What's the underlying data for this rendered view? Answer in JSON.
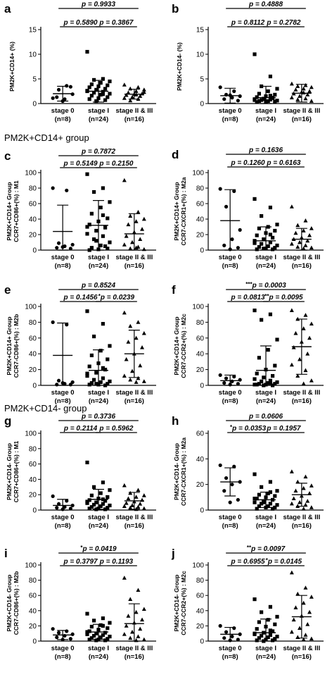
{
  "section_labels": [
    "PM2K+CD14+ group",
    "PM2K+CD14- group"
  ],
  "chart_data": [
    {
      "panel": "a",
      "type": "scatter",
      "ylabel": "PM2K+CD14+ (%)",
      "ylim": [
        0,
        15
      ],
      "yticks": [
        0,
        5,
        10,
        15
      ],
      "categories": [
        "stage 0",
        "stage I",
        "stage II & III"
      ],
      "ns": [
        "(n=8)",
        "(n=24)",
        "(n=16)"
      ],
      "groups": [
        {
          "values": [
            1.1,
            3.6,
            2.8,
            1.9,
            0.9,
            1.3,
            3.4,
            0.5
          ],
          "mean": 2.0,
          "sd": 1.5
        },
        {
          "values": [
            10.5,
            5.0,
            4.8,
            4.5,
            4.2,
            3.9,
            3.7,
            3.5,
            3.3,
            3.0,
            2.8,
            2.6,
            2.4,
            2.2,
            2.0,
            1.8,
            1.6,
            1.3,
            1.1,
            0.9,
            0.7,
            0.5,
            2.5,
            1.9
          ],
          "mean": 2.5,
          "sd": 2.2
        },
        {
          "values": [
            3.8,
            3.3,
            3.0,
            2.8,
            2.5,
            2.2,
            2.0,
            1.9,
            1.7,
            1.5,
            1.3,
            1.1,
            0.9,
            0.6,
            2.3,
            1.8
          ],
          "mean": 1.9,
          "sd": 1.0
        }
      ],
      "comparisons": [
        {
          "pair": [
            0,
            2
          ],
          "text": "p = 0.9933",
          "stars": ""
        },
        {
          "pair": [
            0,
            1
          ],
          "text": "p = 0.5890",
          "stars": ""
        },
        {
          "pair": [
            1,
            2
          ],
          "text": "p = 0.3867",
          "stars": ""
        }
      ]
    },
    {
      "panel": "b",
      "type": "scatter",
      "ylabel": "PM2K+CD14- (%)",
      "ylim": [
        0,
        15
      ],
      "yticks": [
        0,
        5,
        10,
        15
      ],
      "categories": [
        "stage 0",
        "stage I",
        "stage II & III"
      ],
      "ns": [
        "(n=8)",
        "(n=24)",
        "(n=16)"
      ],
      "groups": [
        {
          "values": [
            3.3,
            2.5,
            1.8,
            1.5,
            1.2,
            0.9,
            0.6,
            1.7
          ],
          "mean": 1.6,
          "sd": 1.5
        },
        {
          "values": [
            10.0,
            5.5,
            3.5,
            3.0,
            2.5,
            2.0,
            1.8,
            1.5,
            1.3,
            1.1,
            1.0,
            0.9,
            0.8,
            0.7,
            0.6,
            0.5,
            0.5,
            0.4,
            0.4,
            0.3,
            1.2,
            0.9,
            0.7,
            1.6
          ],
          "mean": 1.2,
          "sd": 2.3
        },
        {
          "values": [
            4.0,
            3.7,
            3.5,
            3.3,
            3.0,
            2.8,
            2.5,
            2.3,
            2.0,
            1.8,
            1.5,
            1.2,
            1.0,
            0.8,
            0.5,
            2.2
          ],
          "mean": 2.1,
          "sd": 1.8
        }
      ],
      "comparisons": [
        {
          "pair": [
            0,
            2
          ],
          "text": "p = 0.4888",
          "stars": ""
        },
        {
          "pair": [
            0,
            1
          ],
          "text": "p = 0.8112",
          "stars": ""
        },
        {
          "pair": [
            1,
            2
          ],
          "text": "p = 0.2782",
          "stars": ""
        }
      ]
    },
    {
      "panel": "c",
      "type": "scatter",
      "ylabel": "PM2K+CD14+ Group|CCR7+CD86+(%) : M1",
      "ylim": [
        0,
        100
      ],
      "yticks": [
        0,
        20,
        40,
        60,
        80,
        100
      ],
      "categories": [
        "stage 0",
        "stage I",
        "stage II & III"
      ],
      "ns": [
        "(n=8)",
        "(n=24)",
        "(n=16)"
      ],
      "groups": [
        {
          "values": [
            80,
            77,
            9,
            7,
            5,
            3,
            2,
            4
          ],
          "mean": 24,
          "sd": 34
        },
        {
          "values": [
            98,
            80,
            75,
            62,
            55,
            47,
            41,
            37,
            33,
            29,
            25,
            21,
            18,
            14,
            10,
            6,
            3,
            2,
            1,
            0,
            5,
            12,
            30,
            45
          ],
          "mean": 32,
          "sd": 32
        },
        {
          "values": [
            90,
            49,
            44,
            40,
            37,
            33,
            27,
            23,
            18,
            14,
            10,
            7,
            4,
            2,
            1,
            3
          ],
          "mean": 21,
          "sd": 26
        }
      ],
      "comparisons": [
        {
          "pair": [
            0,
            2
          ],
          "text": "p = 0.7872",
          "stars": ""
        },
        {
          "pair": [
            0,
            1
          ],
          "text": "p = 0.5149",
          "stars": ""
        },
        {
          "pair": [
            1,
            2
          ],
          "text": "p = 0.2150",
          "stars": ""
        }
      ]
    },
    {
      "panel": "d",
      "type": "scatter",
      "ylabel": "PM2K+CD14+ Group|CCR7-CXCR1+(%) : M2a",
      "ylim": [
        0,
        100
      ],
      "yticks": [
        0,
        20,
        40,
        60,
        80,
        100
      ],
      "categories": [
        "stage 0",
        "stage I",
        "stage II & III"
      ],
      "ns": [
        "(n=8)",
        "(n=24)",
        "(n=16)"
      ],
      "groups": [
        {
          "values": [
            79,
            76,
            56,
            26,
            14,
            6,
            3,
            1
          ],
          "mean": 38,
          "sd": 40
        },
        {
          "values": [
            66,
            55,
            44,
            33,
            30,
            28,
            25,
            22,
            19,
            16,
            14,
            12,
            10,
            8,
            6,
            5,
            4,
            3,
            2,
            1,
            1,
            2,
            9,
            20
          ],
          "mean": 12,
          "sd": 18
        },
        {
          "values": [
            56,
            38,
            32,
            28,
            25,
            22,
            19,
            16,
            14,
            12,
            10,
            8,
            6,
            4,
            3,
            2
          ],
          "mean": 14,
          "sd": 14
        }
      ],
      "comparisons": [
        {
          "pair": [
            0,
            2
          ],
          "text": "p = 0.1636",
          "stars": ""
        },
        {
          "pair": [
            0,
            1
          ],
          "text": "p = 0.1260",
          "stars": ""
        },
        {
          "pair": [
            1,
            2
          ],
          "text": "p = 0.6163",
          "stars": ""
        }
      ]
    },
    {
      "panel": "e",
      "type": "scatter",
      "ylabel": "PM2K+CD14+ Group|CCR7-CD86+(%) : M2b",
      "ylim": [
        0,
        100
      ],
      "yticks": [
        0,
        20,
        40,
        60,
        80,
        100
      ],
      "categories": [
        "stage 0",
        "stage I",
        "stage II & III"
      ],
      "ns": [
        "(n=8)",
        "(n=24)",
        "(n=16)"
      ],
      "groups": [
        {
          "values": [
            80,
            77,
            6,
            4,
            2,
            1,
            1,
            3
          ],
          "mean": 38,
          "sd": 41
        },
        {
          "values": [
            94,
            78,
            62,
            50,
            44,
            38,
            33,
            28,
            24,
            20,
            16,
            12,
            9,
            7,
            5,
            4,
            3,
            2,
            1,
            1,
            0,
            2,
            15,
            22
          ],
          "mean": 19,
          "sd": 26
        },
        {
          "values": [
            92,
            80,
            75,
            66,
            60,
            55,
            48,
            40,
            33,
            25,
            18,
            12,
            9,
            7,
            5,
            4
          ],
          "mean": 40,
          "sd": 30
        }
      ],
      "comparisons": [
        {
          "pair": [
            0,
            2
          ],
          "text": "p = 0.8524",
          "stars": ""
        },
        {
          "pair": [
            0,
            1
          ],
          "text": "p = 0.1456",
          "stars": ""
        },
        {
          "pair": [
            1,
            2
          ],
          "text": "p = 0.0239",
          "stars": "*"
        }
      ]
    },
    {
      "panel": "f",
      "type": "scatter",
      "ylabel": "PM2K+CD14+ Group|CCR7-CCR2+(%) : M2c",
      "ylim": [
        0,
        100
      ],
      "yticks": [
        0,
        20,
        40,
        60,
        80,
        100
      ],
      "categories": [
        "stage 0",
        "stage I",
        "stage II & III"
      ],
      "ns": [
        "(n=8)",
        "(n=24)",
        "(n=16)"
      ],
      "groups": [
        {
          "values": [
            13,
            11,
            9,
            7,
            5,
            3,
            2,
            1
          ],
          "mean": 6,
          "sd": 7
        },
        {
          "values": [
            95,
            90,
            83,
            58,
            45,
            35,
            25,
            20,
            15,
            12,
            10,
            8,
            6,
            5,
            4,
            3,
            2,
            2,
            1,
            1,
            0,
            0,
            1,
            3
          ],
          "mean": 19,
          "sd": 31
        },
        {
          "values": [
            95,
            89,
            84,
            78,
            72,
            66,
            60,
            55,
            48,
            40,
            33,
            26,
            19,
            12,
            6,
            2
          ],
          "mean": 49,
          "sd": 35
        }
      ],
      "comparisons": [
        {
          "pair": [
            0,
            2
          ],
          "text": "p = 0.0003",
          "stars": "***"
        },
        {
          "pair": [
            0,
            1
          ],
          "text": "p = 0.0813",
          "stars": ""
        },
        {
          "pair": [
            1,
            2
          ],
          "text": "p = 0.0095",
          "stars": "**"
        }
      ]
    },
    {
      "panel": "g",
      "type": "scatter",
      "ylabel": "PM2K+CD14- Group|CCR7+CD86+(%) : M1",
      "ylim": [
        0,
        100
      ],
      "yticks": [
        0,
        20,
        40,
        60,
        80,
        100
      ],
      "categories": [
        "stage 0",
        "stage I",
        "stage II & III"
      ],
      "ns": [
        "(n=8)",
        "(n=24)",
        "(n=16)"
      ],
      "groups": [
        {
          "values": [
            18,
            12,
            8,
            6,
            4,
            3,
            2,
            1
          ],
          "mean": 6,
          "sd": 8
        },
        {
          "values": [
            62,
            36,
            30,
            26,
            22,
            19,
            17,
            15,
            13,
            12,
            10,
            9,
            8,
            7,
            6,
            5,
            4,
            3,
            2,
            2,
            1,
            1,
            11,
            14
          ],
          "mean": 14,
          "sd": 13
        },
        {
          "values": [
            32,
            26,
            22,
            19,
            17,
            15,
            13,
            11,
            9,
            8,
            6,
            5,
            4,
            3,
            2,
            1
          ],
          "mean": 12,
          "sd": 11
        }
      ],
      "comparisons": [
        {
          "pair": [
            0,
            2
          ],
          "text": "p = 0.3736",
          "stars": ""
        },
        {
          "pair": [
            0,
            1
          ],
          "text": "p = 0.2114",
          "stars": ""
        },
        {
          "pair": [
            1,
            2
          ],
          "text": "p = 0.5962",
          "stars": ""
        }
      ]
    },
    {
      "panel": "h",
      "type": "scatter",
      "ylabel": "PM2K+CD14- Group|CCR7-CXCR1+(%) : M2a",
      "ylim": [
        0,
        60
      ],
      "yticks": [
        0,
        20,
        40,
        60
      ],
      "categories": [
        "stage 0",
        "stage I",
        "stage II & III"
      ],
      "ns": [
        "(n=8)",
        "(n=24)",
        "(n=16)"
      ],
      "groups": [
        {
          "values": [
            35,
            34,
            25,
            22,
            20,
            15,
            8,
            6
          ],
          "mean": 22,
          "sd": 11
        },
        {
          "values": [
            28,
            22,
            18,
            15,
            13,
            12,
            11,
            10,
            9,
            8,
            7,
            6,
            5,
            5,
            4,
            3,
            3,
            2,
            2,
            1,
            1,
            6,
            9,
            14
          ],
          "mean": 8,
          "sd": 6
        },
        {
          "values": [
            30,
            26,
            22,
            19,
            17,
            15,
            13,
            11,
            9,
            7,
            6,
            5,
            4,
            3,
            2,
            1
          ],
          "mean": 12,
          "sd": 9
        }
      ],
      "comparisons": [
        {
          "pair": [
            0,
            2
          ],
          "text": "p = 0.0606",
          "stars": ""
        },
        {
          "pair": [
            0,
            1
          ],
          "text": "p = 0.0353",
          "stars": "*"
        },
        {
          "pair": [
            1,
            2
          ],
          "text": "p = 0.1957",
          "stars": ""
        }
      ]
    },
    {
      "panel": "i",
      "type": "scatter",
      "ylabel": "PM2K+CD14- Group|CCR7-CD86+(%) : M2b",
      "ylim": [
        0,
        100
      ],
      "yticks": [
        0,
        20,
        40,
        60,
        80,
        100
      ],
      "categories": [
        "stage 0",
        "stage I",
        "stage II & III"
      ],
      "ns": [
        "(n=8)",
        "(n=24)",
        "(n=16)"
      ],
      "groups": [
        {
          "values": [
            16,
            13,
            11,
            9,
            7,
            5,
            3,
            2
          ],
          "mean": 8,
          "sd": 6
        },
        {
          "values": [
            36,
            30,
            27,
            24,
            21,
            19,
            17,
            15,
            13,
            11,
            10,
            9,
            8,
            7,
            6,
            5,
            4,
            3,
            2,
            2,
            1,
            1,
            12,
            20
          ],
          "mean": 12,
          "sd": 10
        },
        {
          "values": [
            83,
            67,
            55,
            42,
            38,
            33,
            28,
            24,
            20,
            16,
            12,
            9,
            6,
            4,
            2,
            1
          ],
          "mean": 23,
          "sd": 26
        }
      ],
      "comparisons": [
        {
          "pair": [
            0,
            2
          ],
          "text": "p = 0.0419",
          "stars": "*"
        },
        {
          "pair": [
            0,
            1
          ],
          "text": "p = 0.3797",
          "stars": ""
        },
        {
          "pair": [
            1,
            2
          ],
          "text": "p = 0.1193",
          "stars": ""
        }
      ]
    },
    {
      "panel": "j",
      "type": "scatter",
      "ylabel": "PM2K+CD14- Group|CCR7-CCR2+(%) : M2c",
      "ylim": [
        0,
        100
      ],
      "yticks": [
        0,
        20,
        40,
        60,
        80,
        100
      ],
      "categories": [
        "stage 0",
        "stage I",
        "stage II & III"
      ],
      "ns": [
        "(n=8)",
        "(n=24)",
        "(n=16)"
      ],
      "groups": [
        {
          "values": [
            20,
            17,
            12,
            9,
            6,
            4,
            2,
            1
          ],
          "mean": 9,
          "sd": 9
        },
        {
          "values": [
            55,
            45,
            38,
            32,
            28,
            25,
            22,
            19,
            16,
            13,
            11,
            9,
            8,
            7,
            6,
            5,
            4,
            3,
            2,
            1,
            1,
            0,
            10,
            14
          ],
          "mean": 11,
          "sd": 18
        },
        {
          "values": [
            90,
            70,
            62,
            58,
            50,
            44,
            38,
            33,
            28,
            22,
            17,
            12,
            8,
            5,
            3,
            2
          ],
          "mean": 32,
          "sd": 28
        }
      ],
      "comparisons": [
        {
          "pair": [
            0,
            2
          ],
          "text": "p = 0.0097",
          "stars": "**"
        },
        {
          "pair": [
            0,
            1
          ],
          "text": "p = 0.6955",
          "stars": ""
        },
        {
          "pair": [
            1,
            2
          ],
          "text": "p = 0.0145",
          "stars": "*"
        }
      ]
    }
  ]
}
